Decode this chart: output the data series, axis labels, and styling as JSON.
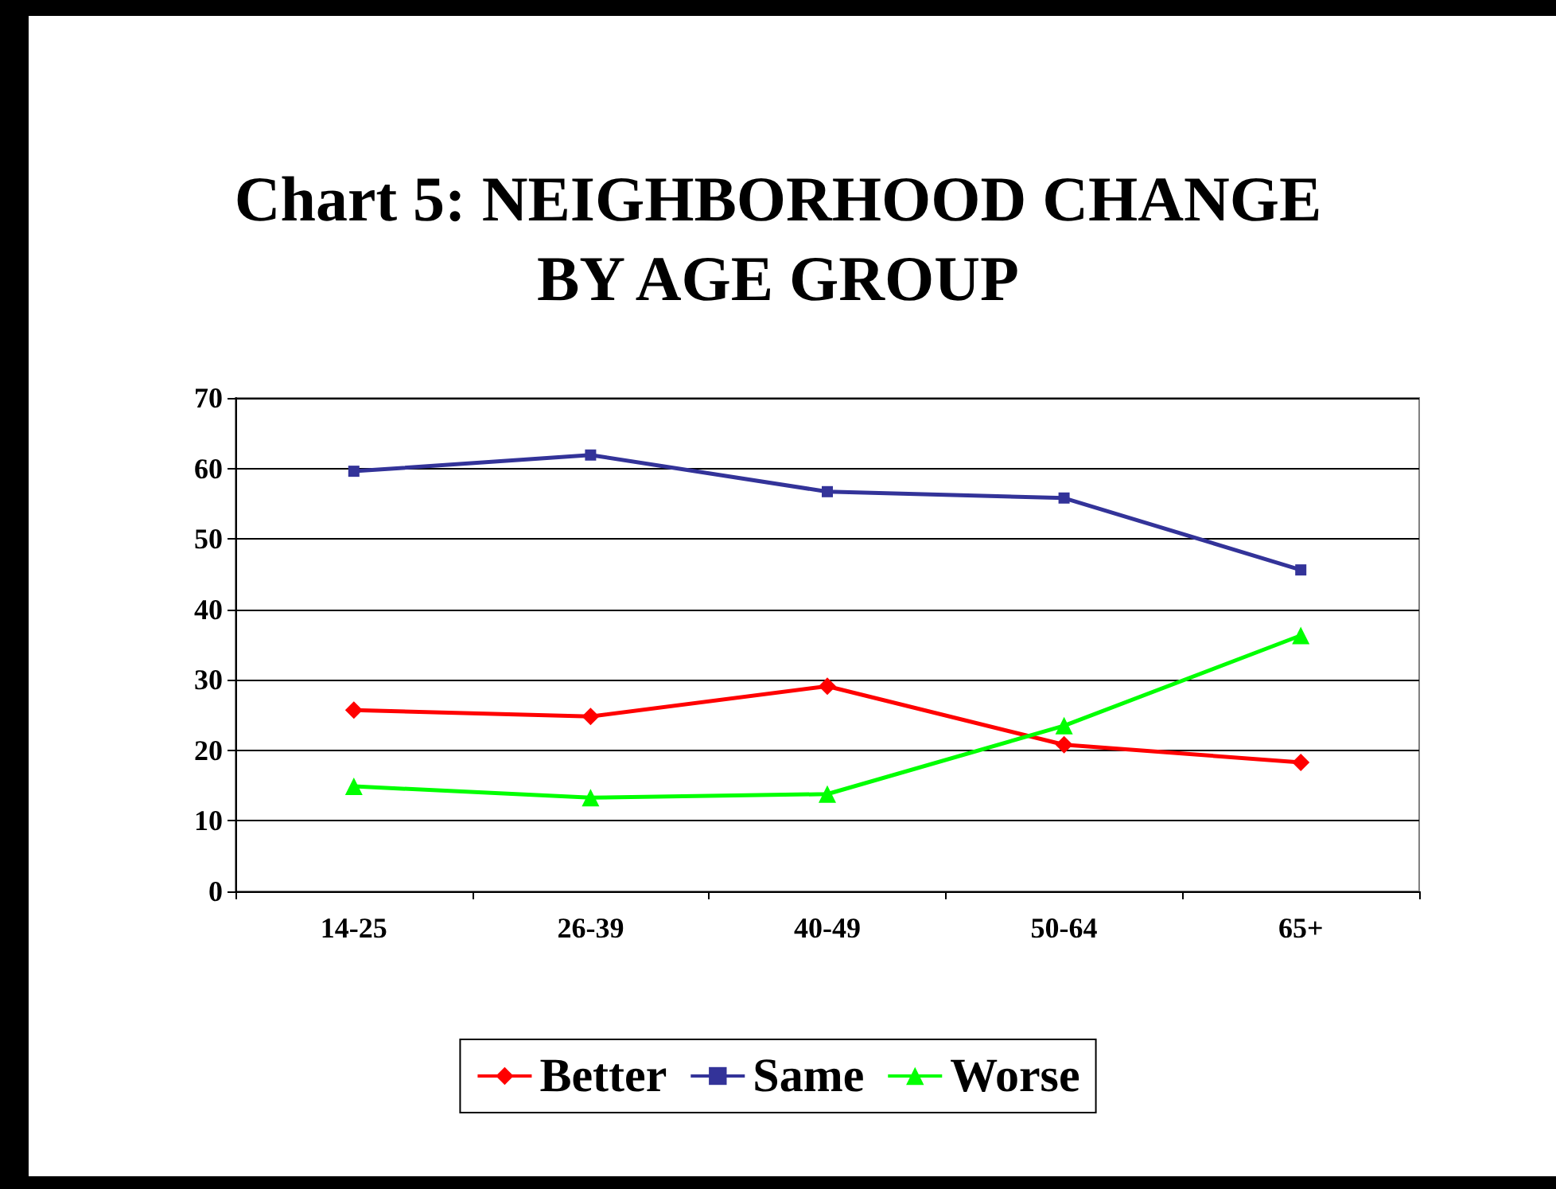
{
  "chart_data": {
    "type": "line",
    "title": "Chart 5: NEIGHBORHOOD CHANGE\nBY AGE GROUP",
    "categories": [
      "14-25",
      "26-39",
      "40-49",
      "50-64",
      "65+"
    ],
    "series": [
      {
        "name": "Better",
        "color": "#ff0000",
        "marker": "diamond",
        "values": [
          25.7,
          24.8,
          29.1,
          20.8,
          18.3
        ]
      },
      {
        "name": "Same",
        "color": "#333399",
        "marker": "square",
        "values": [
          59.6,
          61.9,
          56.7,
          55.8,
          45.6
        ]
      },
      {
        "name": "Worse",
        "color": "#00ff00",
        "marker": "triangle",
        "values": [
          14.9,
          13.3,
          13.8,
          23.5,
          36.3
        ]
      }
    ],
    "ylim": [
      0,
      70
    ],
    "yticks": [
      0,
      10,
      20,
      30,
      40,
      50,
      60,
      70
    ],
    "grid": "y",
    "legend": "bottom"
  }
}
